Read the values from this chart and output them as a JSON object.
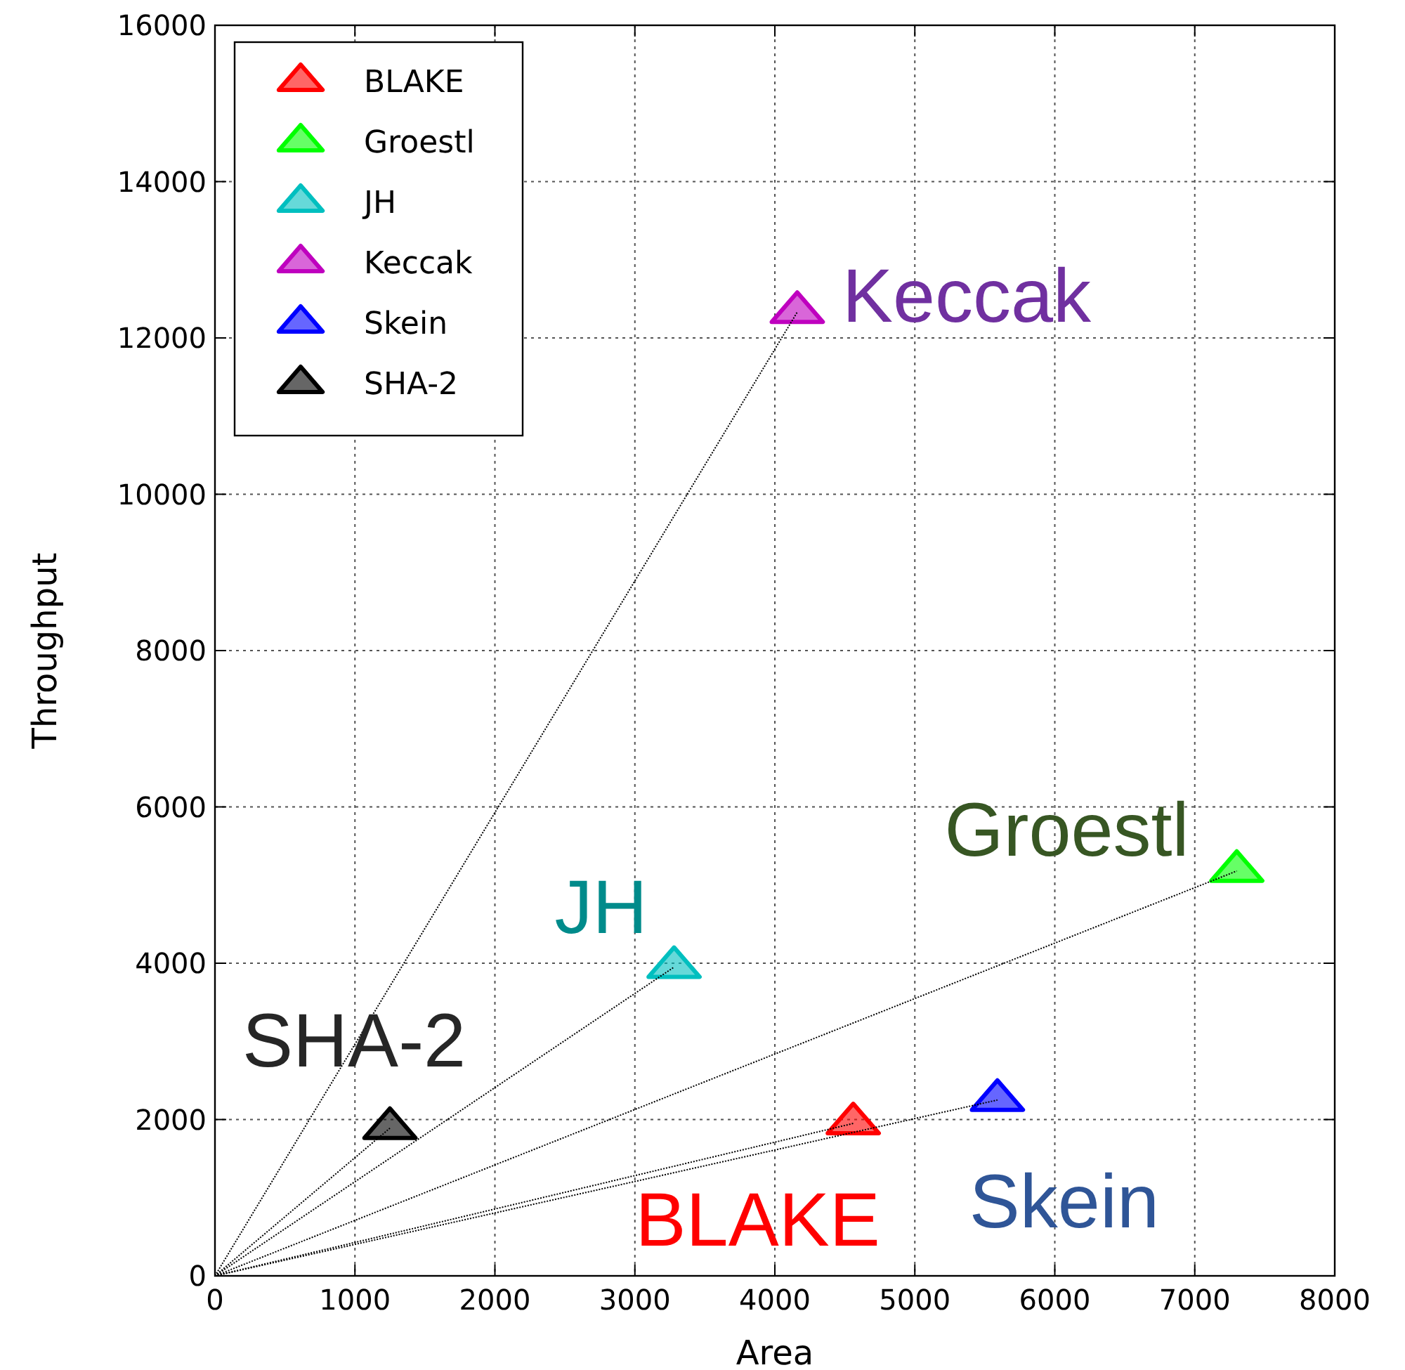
{
  "chart_data": {
    "type": "scatter",
    "xlabel": "Area",
    "ylabel": "Throughput",
    "xlim": [
      0,
      8000
    ],
    "ylim": [
      0,
      16000
    ],
    "xticks": [
      0,
      1000,
      2000,
      3000,
      4000,
      5000,
      6000,
      7000,
      8000
    ],
    "yticks": [
      0,
      2000,
      4000,
      6000,
      8000,
      10000,
      12000,
      14000,
      16000
    ],
    "grid": true,
    "legend": "top left",
    "marker": "triangle",
    "series": [
      {
        "name": "BLAKE",
        "color": "#ff0000",
        "x": [
          4560
        ],
        "values": [
          1950
        ]
      },
      {
        "name": "Groestl",
        "color": "#00ff00",
        "x": [
          7300
        ],
        "values": [
          5180
        ]
      },
      {
        "name": "JH",
        "color": "#00bfbf",
        "x": [
          3280
        ],
        "values": [
          3950
        ]
      },
      {
        "name": "Keccak",
        "color": "#bf00bf",
        "x": [
          4160
        ],
        "values": [
          12330
        ]
      },
      {
        "name": "Skein",
        "color": "#0000ff",
        "x": [
          5590
        ],
        "values": [
          2250
        ]
      },
      {
        "name": "SHA-2",
        "color": "#000000",
        "x": [
          1250
        ],
        "values": [
          1890
        ]
      },
      {
        "type": "line",
        "color": "#000000",
        "line_style": "dotted",
        "marker": "none",
        "x": [
          0,
          4560
        ],
        "values": [
          0,
          1950
        ]
      },
      {
        "type": "line",
        "color": "#000000",
        "line_style": "dotted",
        "marker": "none",
        "x": [
          0,
          7300
        ],
        "values": [
          0,
          5180
        ]
      },
      {
        "type": "line",
        "color": "#000000",
        "line_style": "dotted",
        "marker": "none",
        "x": [
          0,
          3280
        ],
        "values": [
          0,
          3950
        ]
      },
      {
        "type": "line",
        "color": "#000000",
        "line_style": "dotted",
        "marker": "none",
        "x": [
          0,
          4160
        ],
        "values": [
          0,
          12330
        ]
      },
      {
        "type": "line",
        "color": "#000000",
        "line_style": "dotted",
        "marker": "none",
        "x": [
          0,
          5590
        ],
        "values": [
          0,
          2250
        ]
      },
      {
        "type": "line",
        "color": "#000000",
        "line_style": "dotted",
        "marker": "none",
        "x": [
          0,
          1250
        ],
        "values": [
          0,
          1890
        ]
      }
    ],
    "annotations": [
      {
        "text": "BLAKE",
        "x": 4560,
        "y": 1950
      },
      {
        "text": "Groestl",
        "x": 7300,
        "y": 5180
      },
      {
        "text": "JH",
        "x": 3280,
        "y": 3950
      },
      {
        "text": "Keccak",
        "x": 4160,
        "y": 12330
      },
      {
        "text": "Skein",
        "x": 5590,
        "y": 2250
      },
      {
        "text": "SHA-2",
        "x": 1250,
        "y": 1890
      }
    ]
  }
}
